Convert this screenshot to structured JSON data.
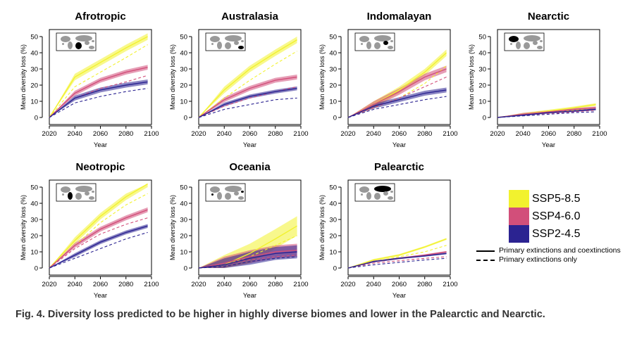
{
  "caption": "Fig. 4. Diversity loss predicted to be higher in highly diverse biomes and lower in the Palearctic and Nearctic.",
  "legend": {
    "scenarios": [
      {
        "name": "SSP5-8.5",
        "color": "#f2f22e"
      },
      {
        "name": "SSP4-6.0",
        "color": "#d24f7a"
      },
      {
        "name": "SSP2-4.5",
        "color": "#2b2391"
      }
    ],
    "line_types": [
      {
        "style": "solid",
        "label": "Primary extinctions and coextinctions"
      },
      {
        "style": "dashed",
        "label": "Primary extinctions only"
      }
    ]
  },
  "chart_data": [
    {
      "type": "line",
      "title": "Afrotropic",
      "xlabel": "Year",
      "ylabel": "Mean diversity loss (%)",
      "xlim": [
        2020,
        2100
      ],
      "ylim": [
        0,
        50
      ],
      "xticks": [
        2020,
        2040,
        2060,
        2080,
        2100
      ],
      "yticks": [
        0,
        10,
        20,
        30,
        40,
        50
      ],
      "x": [
        2020,
        2040,
        2060,
        2080,
        2097
      ],
      "inset_map": "Afrotropic region highlighted",
      "series": [
        {
          "name": "SSP5-8.5",
          "style": "solid",
          "values": [
            0,
            25,
            34,
            43,
            50
          ],
          "band": 2
        },
        {
          "name": "SSP5-8.5",
          "style": "dashed",
          "values": [
            0,
            19,
            28,
            37,
            45
          ]
        },
        {
          "name": "SSP4-6.0",
          "style": "solid",
          "values": [
            0,
            15,
            23,
            28,
            31
          ],
          "band": 1.5
        },
        {
          "name": "SSP4-6.0",
          "style": "dashed",
          "values": [
            0,
            12,
            18,
            22,
            26
          ]
        },
        {
          "name": "SSP2-4.5",
          "style": "solid",
          "values": [
            0,
            12,
            17,
            20,
            22
          ],
          "band": 1.5
        },
        {
          "name": "SSP2-4.5",
          "style": "dashed",
          "values": [
            0,
            9,
            13,
            16,
            18
          ]
        }
      ]
    },
    {
      "type": "line",
      "title": "Australasia",
      "xlabel": "Year",
      "ylabel": "Mean diversity loss (%)",
      "xlim": [
        2020,
        2100
      ],
      "ylim": [
        0,
        50
      ],
      "xticks": [
        2020,
        2040,
        2060,
        2080,
        2100
      ],
      "yticks": [
        0,
        10,
        20,
        30,
        40,
        50
      ],
      "x": [
        2020,
        2040,
        2060,
        2080,
        2097
      ],
      "inset_map": "Australasia region highlighted",
      "series": [
        {
          "name": "SSP5-8.5",
          "style": "solid",
          "values": [
            0,
            17,
            30,
            40,
            48
          ],
          "band": 2
        },
        {
          "name": "SSP5-8.5",
          "style": "dashed",
          "values": [
            0,
            12,
            23,
            33,
            41
          ]
        },
        {
          "name": "SSP4-6.0",
          "style": "solid",
          "values": [
            0,
            11,
            18,
            23,
            25
          ],
          "band": 1.5
        },
        {
          "name": "SSP4-6.0",
          "style": "dashed",
          "values": [
            0,
            7,
            12,
            16,
            19
          ]
        },
        {
          "name": "SSP2-4.5",
          "style": "solid",
          "values": [
            0,
            8,
            13,
            16,
            18
          ],
          "band": 1.2
        },
        {
          "name": "SSP2-4.5",
          "style": "dashed",
          "values": [
            0,
            5,
            8,
            11,
            12
          ]
        }
      ]
    },
    {
      "type": "line",
      "title": "Indomalayan",
      "xlabel": "Year",
      "ylabel": "Mean diversity loss (%)",
      "xlim": [
        2020,
        2100
      ],
      "ylim": [
        0,
        50
      ],
      "xticks": [
        2020,
        2040,
        2060,
        2080,
        2100
      ],
      "yticks": [
        0,
        10,
        20,
        30,
        40,
        50
      ],
      "x": [
        2020,
        2040,
        2060,
        2080,
        2097
      ],
      "inset_map": "Indomalayan region highlighted",
      "series": [
        {
          "name": "SSP5-8.5",
          "style": "solid",
          "values": [
            0,
            8,
            17,
            28,
            40
          ],
          "band": 2
        },
        {
          "name": "SSP5-8.5",
          "style": "dashed",
          "values": [
            0,
            6,
            12,
            21,
            32
          ]
        },
        {
          "name": "SSP4-6.0",
          "style": "solid",
          "values": [
            0,
            8,
            16,
            25,
            30
          ],
          "band": 2
        },
        {
          "name": "SSP4-6.0",
          "style": "dashed",
          "values": [
            0,
            6,
            12,
            19,
            25
          ]
        },
        {
          "name": "SSP2-4.5",
          "style": "solid",
          "values": [
            0,
            7,
            11,
            15,
            17
          ],
          "band": 1.5
        },
        {
          "name": "SSP2-4.5",
          "style": "dashed",
          "values": [
            0,
            5,
            8,
            11,
            13
          ]
        }
      ]
    },
    {
      "type": "line",
      "title": "Nearctic",
      "xlabel": "Year",
      "ylabel": "Mean diversity loss (%)",
      "xlim": [
        2020,
        2100
      ],
      "ylim": [
        0,
        50
      ],
      "xticks": [
        2020,
        2040,
        2060,
        2080,
        2100
      ],
      "yticks": [
        0,
        10,
        20,
        30,
        40,
        50
      ],
      "x": [
        2020,
        2040,
        2060,
        2080,
        2097
      ],
      "inset_map": "Nearctic region highlighted",
      "series": [
        {
          "name": "SSP5-8.5",
          "style": "solid",
          "values": [
            0,
            2,
            4,
            6,
            8
          ],
          "band": 0.8
        },
        {
          "name": "SSP5-8.5",
          "style": "dashed",
          "values": [
            0,
            1.5,
            3,
            4.5,
            6
          ]
        },
        {
          "name": "SSP4-6.0",
          "style": "solid",
          "values": [
            0,
            2,
            3.5,
            5,
            6
          ],
          "band": 0.8
        },
        {
          "name": "SSP4-6.0",
          "style": "dashed",
          "values": [
            0,
            1.5,
            2.5,
            3.5,
            4.5
          ]
        },
        {
          "name": "SSP2-4.5",
          "style": "solid",
          "values": [
            0,
            1.5,
            3,
            4,
            5
          ],
          "band": 0.6
        },
        {
          "name": "SSP2-4.5",
          "style": "dashed",
          "values": [
            0,
            1,
            2,
            3,
            3.5
          ]
        }
      ]
    },
    {
      "type": "line",
      "title": "Neotropic",
      "xlabel": "Year",
      "ylabel": "Mean diversity loss (%)",
      "xlim": [
        2020,
        2100
      ],
      "ylim": [
        0,
        50
      ],
      "xticks": [
        2020,
        2040,
        2060,
        2080,
        2100
      ],
      "yticks": [
        0,
        10,
        20,
        30,
        40,
        50
      ],
      "x": [
        2020,
        2040,
        2060,
        2080,
        2097
      ],
      "inset_map": "Neotropic region highlighted",
      "series": [
        {
          "name": "SSP5-8.5",
          "style": "solid",
          "values": [
            0,
            17,
            32,
            44,
            52
          ],
          "band": 2
        },
        {
          "name": "SSP5-8.5",
          "style": "dashed",
          "values": [
            0,
            14,
            28,
            39,
            46
          ]
        },
        {
          "name": "SSP4-6.0",
          "style": "solid",
          "values": [
            0,
            14,
            24,
            31,
            36
          ],
          "band": 1.5
        },
        {
          "name": "SSP4-6.0",
          "style": "dashed",
          "values": [
            0,
            12,
            21,
            27,
            31
          ]
        },
        {
          "name": "SSP2-4.5",
          "style": "solid",
          "values": [
            0,
            8,
            16,
            22,
            26
          ],
          "band": 1.2
        },
        {
          "name": "SSP2-4.5",
          "style": "dashed",
          "values": [
            0,
            6,
            12,
            18,
            22
          ]
        }
      ]
    },
    {
      "type": "line",
      "title": "Oceania",
      "xlabel": "Year",
      "ylabel": "Mean diversity loss (%)",
      "xlim": [
        2020,
        2100
      ],
      "ylim": [
        0,
        50
      ],
      "xticks": [
        2020,
        2040,
        2060,
        2080,
        2100
      ],
      "yticks": [
        0,
        10,
        20,
        30,
        40,
        50
      ],
      "x": [
        2020,
        2040,
        2060,
        2080,
        2097
      ],
      "inset_map": "Oceania region highlighted",
      "series": [
        {
          "name": "SSP5-8.5",
          "style": "solid",
          "values": [
            0,
            2,
            9,
            18,
            26
          ],
          "band": 6
        },
        {
          "name": "SSP5-8.5",
          "style": "dashed",
          "values": [
            0,
            2,
            7,
            14,
            20
          ]
        },
        {
          "name": "SSP4-6.0",
          "style": "solid",
          "values": [
            0,
            3,
            7,
            10,
            11
          ],
          "band": 4
        },
        {
          "name": "SSP4-6.0",
          "style": "dashed",
          "values": [
            0,
            2,
            5,
            7,
            8
          ]
        },
        {
          "name": "SSP2-4.5",
          "style": "solid",
          "values": [
            0,
            2,
            6,
            9,
            10
          ],
          "band": 4
        },
        {
          "name": "SSP2-4.5",
          "style": "dashed",
          "values": [
            0,
            1,
            4,
            6,
            7
          ]
        }
      ]
    },
    {
      "type": "line",
      "title": "Palearctic",
      "xlabel": "Year",
      "ylabel": "Mean diversity loss (%)",
      "xlim": [
        2020,
        2100
      ],
      "ylim": [
        0,
        50
      ],
      "xticks": [
        2020,
        2040,
        2060,
        2080,
        2100
      ],
      "yticks": [
        0,
        10,
        20,
        30,
        40,
        50
      ],
      "x": [
        2020,
        2040,
        2060,
        2080,
        2097
      ],
      "inset_map": "Palearctic region highlighted",
      "series": [
        {
          "name": "SSP5-8.5",
          "style": "solid",
          "values": [
            0,
            5,
            8,
            13,
            18
          ],
          "band": 0.6
        },
        {
          "name": "SSP5-8.5",
          "style": "dashed",
          "values": [
            0,
            4,
            7,
            10,
            14
          ]
        },
        {
          "name": "SSP4-6.0",
          "style": "solid",
          "values": [
            0,
            4,
            6,
            8,
            10
          ],
          "band": 0.5
        },
        {
          "name": "SSP4-6.0",
          "style": "dashed",
          "values": [
            0,
            3,
            4.5,
            6,
            7
          ]
        },
        {
          "name": "SSP2-4.5",
          "style": "solid",
          "values": [
            0,
            4,
            6,
            7.5,
            9
          ],
          "band": 0.5
        },
        {
          "name": "SSP2-4.5",
          "style": "dashed",
          "values": [
            0,
            2,
            3.5,
            5,
            6
          ]
        }
      ]
    }
  ]
}
